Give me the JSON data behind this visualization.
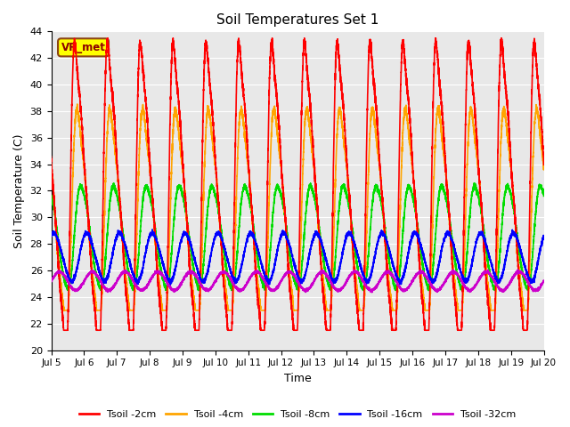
{
  "title": "Soil Temperatures Set 1",
  "xlabel": "Time",
  "ylabel": "Soil Temperature (C)",
  "xlim": [
    0,
    15
  ],
  "ylim": [
    20,
    44
  ],
  "xtick_labels": [
    "Jul 5",
    "Jul 6",
    "Jul 7",
    "Jul 8",
    "Jul 9",
    "Jul 10",
    "Jul 11",
    "Jul 12",
    "Jul 13",
    "Jul 14",
    "Jul 15",
    "Jul 16",
    "Jul 17",
    "Jul 18",
    "Jul 19",
    "Jul 20"
  ],
  "ytick_values": [
    20,
    22,
    24,
    26,
    28,
    30,
    32,
    34,
    36,
    38,
    40,
    42,
    44
  ],
  "background_color": "#e8e8e8",
  "fig_background": "#ffffff",
  "annotation_text": "VR_met",
  "annotation_bg": "#ffff00",
  "annotation_border": "#8b4513",
  "legend_entries": [
    "Tsoil -2cm",
    "Tsoil -4cm",
    "Tsoil -8cm",
    "Tsoil -16cm",
    "Tsoil -32cm"
  ],
  "line_colors": [
    "#ff0000",
    "#ffa500",
    "#00dd00",
    "#0000ff",
    "#cc00cc"
  ],
  "line_widths": [
    1.2,
    1.2,
    1.2,
    1.2,
    1.2
  ],
  "n_points": 7200,
  "days": 15
}
